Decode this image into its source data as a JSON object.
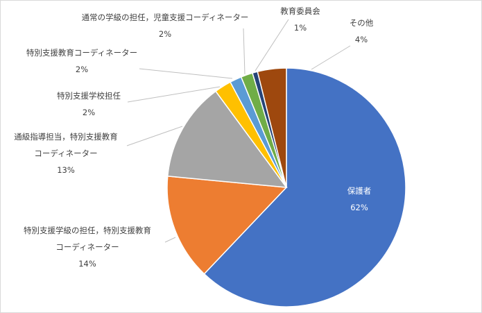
{
  "chart_data": {
    "type": "pie",
    "title": "",
    "start_angle_deg": 0,
    "direction": "clockwise",
    "slices": [
      {
        "lines": [
          "保護者"
        ],
        "pct": "62%",
        "value": 62.1,
        "color": "#4472c4"
      },
      {
        "lines": [
          "特別支援学級の担任，特別支援教育",
          "コーディネーター"
        ],
        "pct": "14%",
        "value": 14.4,
        "color": "#ed7d31"
      },
      {
        "lines": [
          "通級指導担当，特別支援教育",
          "コーディネーター"
        ],
        "pct": "13%",
        "value": 13.4,
        "color": "#a5a5a5"
      },
      {
        "lines": [
          "特別支援学校担任"
        ],
        "pct": "2%",
        "value": 2.3,
        "color": "#ffc000"
      },
      {
        "lines": [
          "特別支援教育コーディネーター"
        ],
        "pct": "2%",
        "value": 1.6,
        "color": "#5b9bd5"
      },
      {
        "lines": [
          "通常の学級の担任，児童支援コーディネーター"
        ],
        "pct": "2%",
        "value": 1.6,
        "color": "#70ad47"
      },
      {
        "lines": [
          "教育委員会"
        ],
        "pct": "1%",
        "value": 0.7,
        "color": "#264478"
      },
      {
        "lines": [
          "その他"
        ],
        "pct": "4%",
        "value": 3.9,
        "color": "#9e480e"
      }
    ]
  }
}
